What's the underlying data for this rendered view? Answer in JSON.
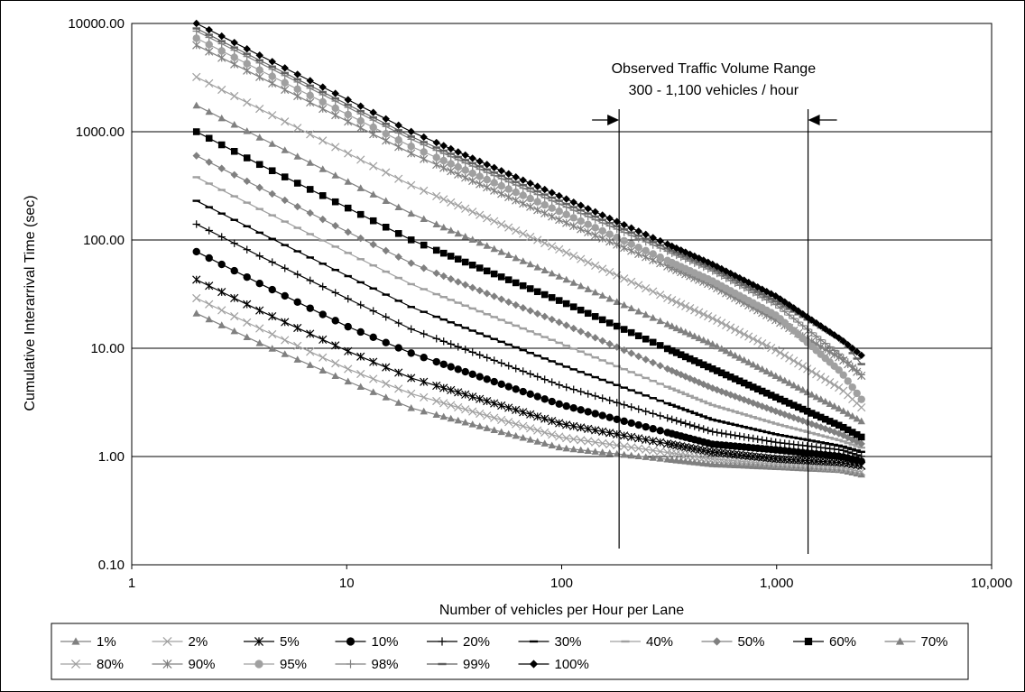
{
  "chart_data": {
    "type": "line",
    "title": "",
    "xlabel": "Number of vehicles per Hour per Lane",
    "ylabel": "Cumulative Interarrival Time (sec)",
    "x_scale": "log",
    "y_scale": "log",
    "xlim": [
      1,
      10000
    ],
    "ylim": [
      0.1,
      10000
    ],
    "x_ticks": [
      {
        "value": 1,
        "label": "1"
      },
      {
        "value": 10,
        "label": "10"
      },
      {
        "value": 100,
        "label": "100"
      },
      {
        "value": 1000,
        "label": "1,000"
      },
      {
        "value": 10000,
        "label": "10,000"
      }
    ],
    "y_ticks": [
      {
        "value": 0.1,
        "label": "0.10"
      },
      {
        "value": 1,
        "label": "1.00"
      },
      {
        "value": 10,
        "label": "10.00"
      },
      {
        "value": 100,
        "label": "100.00"
      },
      {
        "value": 1000,
        "label": "1000.00"
      },
      {
        "value": 10000,
        "label": "10000.00"
      }
    ],
    "grid": {
      "horizontal": true,
      "vertical": false
    },
    "legend_position": "bottom",
    "annotation": {
      "text_line1": "Observed Traffic Volume Range",
      "text_line2": "300 - 1,100 vehicles / hour",
      "range": [
        185,
        1400
      ]
    },
    "series": [
      {
        "name": "1%",
        "marker": "triangle",
        "color": "#808080",
        "points": [
          [
            2,
            21
          ],
          [
            4,
            11
          ],
          [
            10,
            5
          ],
          [
            20,
            2.8
          ],
          [
            100,
            1.2
          ],
          [
            500,
            0.85
          ],
          [
            1000,
            0.8
          ],
          [
            2000,
            0.75
          ],
          [
            2500,
            0.68
          ]
        ]
      },
      {
        "name": "2%",
        "marker": "x",
        "color": "#a0a0a0",
        "points": [
          [
            2,
            29
          ],
          [
            4,
            15
          ],
          [
            10,
            6.5
          ],
          [
            20,
            3.8
          ],
          [
            100,
            1.5
          ],
          [
            500,
            0.95
          ],
          [
            1000,
            0.85
          ],
          [
            2000,
            0.78
          ],
          [
            2500,
            0.72
          ]
        ]
      },
      {
        "name": "5%",
        "marker": "star",
        "color": "#000000",
        "points": [
          [
            2,
            43
          ],
          [
            4,
            22
          ],
          [
            10,
            9.5
          ],
          [
            20,
            5.3
          ],
          [
            100,
            2
          ],
          [
            500,
            1.1
          ],
          [
            1000,
            0.95
          ],
          [
            2000,
            0.88
          ],
          [
            2500,
            0.82
          ]
        ]
      },
      {
        "name": "10%",
        "marker": "circle",
        "color": "#000000",
        "points": [
          [
            2,
            78
          ],
          [
            4,
            39
          ],
          [
            10,
            16
          ],
          [
            20,
            9
          ],
          [
            100,
            3
          ],
          [
            500,
            1.3
          ],
          [
            1000,
            1.15
          ],
          [
            2000,
            1.0
          ],
          [
            2500,
            0.9
          ]
        ]
      },
      {
        "name": "20%",
        "marker": "plus",
        "color": "#000000",
        "points": [
          [
            2,
            140
          ],
          [
            4,
            70
          ],
          [
            10,
            29
          ],
          [
            20,
            15
          ],
          [
            100,
            4.5
          ],
          [
            500,
            1.7
          ],
          [
            1000,
            1.35
          ],
          [
            2000,
            1.15
          ],
          [
            2500,
            1.0
          ]
        ]
      },
      {
        "name": "30%",
        "marker": "dash",
        "color": "#000000",
        "points": [
          [
            2,
            230
          ],
          [
            4,
            115
          ],
          [
            10,
            47
          ],
          [
            20,
            24
          ],
          [
            100,
            7
          ],
          [
            500,
            2.2
          ],
          [
            1000,
            1.6
          ],
          [
            2000,
            1.25
          ],
          [
            2500,
            1.1
          ]
        ]
      },
      {
        "name": "40%",
        "marker": "dash",
        "color": "#a0a0a0",
        "points": [
          [
            2,
            380
          ],
          [
            4,
            190
          ],
          [
            10,
            77
          ],
          [
            20,
            39
          ],
          [
            100,
            11
          ],
          [
            500,
            3
          ],
          [
            1000,
            2
          ],
          [
            2000,
            1.4
          ],
          [
            2500,
            1.2
          ]
        ]
      },
      {
        "name": "50%",
        "marker": "diamond",
        "color": "#808080",
        "points": [
          [
            2,
            600
          ],
          [
            4,
            300
          ],
          [
            10,
            120
          ],
          [
            20,
            61
          ],
          [
            100,
            17
          ],
          [
            500,
            4.3
          ],
          [
            1000,
            2.6
          ],
          [
            2000,
            1.6
          ],
          [
            2500,
            1.3
          ]
        ]
      },
      {
        "name": "60%",
        "marker": "square",
        "color": "#000000",
        "points": [
          [
            2,
            1000
          ],
          [
            4,
            490
          ],
          [
            10,
            200
          ],
          [
            20,
            100
          ],
          [
            100,
            27
          ],
          [
            500,
            6.5
          ],
          [
            1000,
            3.5
          ],
          [
            2000,
            1.9
          ],
          [
            2500,
            1.5
          ]
        ]
      },
      {
        "name": "70%",
        "marker": "triangle",
        "color": "#808080",
        "points": [
          [
            2,
            1750
          ],
          [
            4,
            870
          ],
          [
            10,
            350
          ],
          [
            20,
            175
          ],
          [
            100,
            45
          ],
          [
            500,
            11
          ],
          [
            1000,
            5.5
          ],
          [
            2000,
            2.7
          ],
          [
            2500,
            2.1
          ]
        ]
      },
      {
        "name": "80%",
        "marker": "x",
        "color": "#a0a0a0",
        "points": [
          [
            2,
            3200
          ],
          [
            4,
            1600
          ],
          [
            10,
            640
          ],
          [
            20,
            320
          ],
          [
            100,
            80
          ],
          [
            500,
            19
          ],
          [
            1000,
            9.5
          ],
          [
            2000,
            4.2
          ],
          [
            2500,
            2.8
          ]
        ]
      },
      {
        "name": "90%",
        "marker": "star",
        "color": "#808080",
        "points": [
          [
            2,
            6300
          ],
          [
            4,
            3150
          ],
          [
            10,
            1260
          ],
          [
            20,
            630
          ],
          [
            100,
            150
          ],
          [
            500,
            38
          ],
          [
            1000,
            18
          ],
          [
            2000,
            8
          ],
          [
            2500,
            5.5
          ]
        ]
      },
      {
        "name": "95%",
        "marker": "circle",
        "color": "#a0a0a0",
        "points": [
          [
            2,
            7300
          ],
          [
            4,
            3650
          ],
          [
            10,
            1460
          ],
          [
            20,
            730
          ],
          [
            100,
            180
          ],
          [
            500,
            42
          ],
          [
            1000,
            20
          ],
          [
            2000,
            6
          ],
          [
            2500,
            3.3
          ]
        ]
      },
      {
        "name": "98%",
        "marker": "plus",
        "color": "#808080",
        "points": [
          [
            2,
            8500
          ],
          [
            4,
            4250
          ],
          [
            10,
            1700
          ],
          [
            20,
            850
          ],
          [
            100,
            210
          ],
          [
            500,
            52
          ],
          [
            1000,
            25
          ],
          [
            2000,
            8.5
          ],
          [
            2500,
            5.6
          ]
        ]
      },
      {
        "name": "99%",
        "marker": "dash",
        "color": "#606060",
        "points": [
          [
            2,
            9000
          ],
          [
            4,
            4500
          ],
          [
            10,
            1800
          ],
          [
            20,
            900
          ],
          [
            100,
            225
          ],
          [
            500,
            55
          ],
          [
            1000,
            27
          ],
          [
            2000,
            12
          ],
          [
            2500,
            7
          ]
        ]
      },
      {
        "name": "100%",
        "marker": "diamond",
        "color": "#000000",
        "points": [
          [
            2,
            10000
          ],
          [
            4,
            5000
          ],
          [
            10,
            2000
          ],
          [
            20,
            1000
          ],
          [
            100,
            250
          ],
          [
            500,
            60
          ],
          [
            1000,
            30
          ],
          [
            2000,
            12
          ],
          [
            2500,
            8.5
          ]
        ]
      }
    ]
  }
}
